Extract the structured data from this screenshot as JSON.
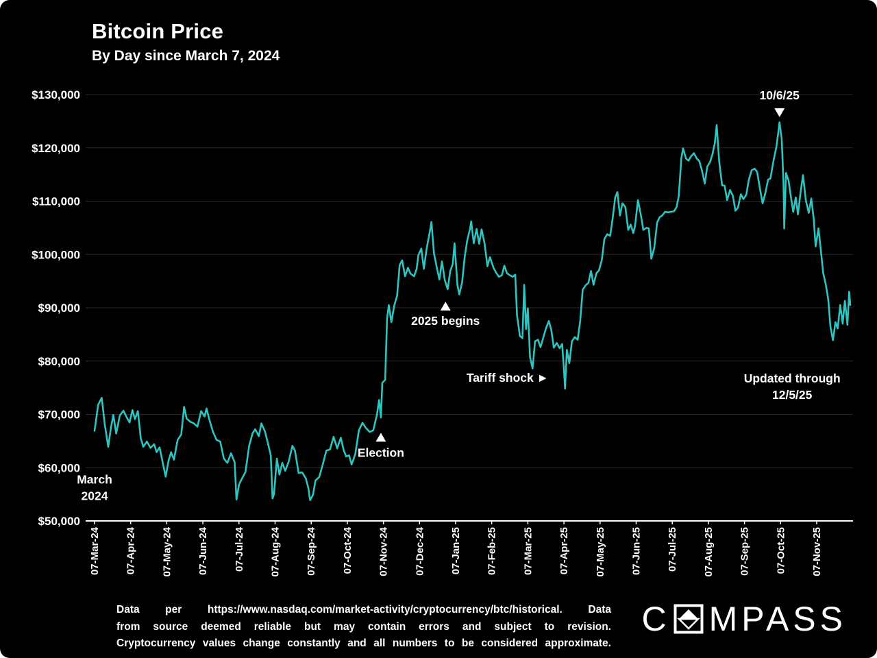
{
  "header": {
    "title": "Bitcoin Price",
    "subtitle": "By Day since March 7, 2024"
  },
  "chart_data": {
    "type": "line",
    "title": "Bitcoin Price",
    "subtitle": "By Day since March 7, 2024",
    "line_color": "#2fc4bf",
    "background": "#000000",
    "grid_color": "#2a2a2a",
    "y_axis": {
      "min": 50,
      "max": 130,
      "tick_step": 10,
      "unit": "USD thousands",
      "tick_labels": [
        "$50,000",
        "$60,000",
        "$70,000",
        "$80,000",
        "$90,000",
        "$100,000",
        "$110,000",
        "$120,000",
        "$130,000"
      ]
    },
    "x_axis": {
      "min": 0,
      "max": 20.93,
      "note": "x unit = months since 07-Mar-24; ticks on the 7th of each month",
      "tick_labels": [
        "07-Mar-24",
        "07-Apr-24",
        "07-May-24",
        "07-Jun-24",
        "07-Jul-24",
        "07-Aug-24",
        "07-Sep-24",
        "07-Oct-24",
        "07-Nov-24",
        "07-Dec-24",
        "07-Jan-25",
        "07-Feb-25",
        "07-Mar-25",
        "07-Apr-25",
        "07-May-25",
        "07-Jun-25",
        "07-Jul-25",
        "07-Aug-25",
        "07-Sep-25",
        "07-Oct-25",
        "07-Nov-25"
      ]
    },
    "series": [
      {
        "name": "Bitcoin price (USD thousands)",
        "points": [
          [
            0,
            66.9
          ],
          [
            0.1,
            71.8
          ],
          [
            0.2,
            73.1
          ],
          [
            0.28,
            68.2
          ],
          [
            0.38,
            63.9
          ],
          [
            0.45,
            67.3
          ],
          [
            0.52,
            69.9
          ],
          [
            0.6,
            66.4
          ],
          [
            0.7,
            69.8
          ],
          [
            0.8,
            70.7
          ],
          [
            0.9,
            69.3
          ],
          [
            0.97,
            68.5
          ],
          [
            1.05,
            70.8
          ],
          [
            1.12,
            69.1
          ],
          [
            1.2,
            70.6
          ],
          [
            1.28,
            65.5
          ],
          [
            1.35,
            63.9
          ],
          [
            1.45,
            64.9
          ],
          [
            1.55,
            63.7
          ],
          [
            1.65,
            64.4
          ],
          [
            1.72,
            62.9
          ],
          [
            1.8,
            63.8
          ],
          [
            1.9,
            60.6
          ],
          [
            1.97,
            58.3
          ],
          [
            2.05,
            61.3
          ],
          [
            2.12,
            62.9
          ],
          [
            2.2,
            61.5
          ],
          [
            2.3,
            65.2
          ],
          [
            2.4,
            66.2
          ],
          [
            2.48,
            71.4
          ],
          [
            2.55,
            69.2
          ],
          [
            2.65,
            68.6
          ],
          [
            2.75,
            68.3
          ],
          [
            2.85,
            67.7
          ],
          [
            2.95,
            70.6
          ],
          [
            3.05,
            69.6
          ],
          [
            3.1,
            71.1
          ],
          [
            3.18,
            69.0
          ],
          [
            3.28,
            66.7
          ],
          [
            3.38,
            65.2
          ],
          [
            3.48,
            64.9
          ],
          [
            3.58,
            61.7
          ],
          [
            3.68,
            60.9
          ],
          [
            3.78,
            62.7
          ],
          [
            3.88,
            61.0
          ],
          [
            3.93,
            54.0
          ],
          [
            4.0,
            56.8
          ],
          [
            4.08,
            57.9
          ],
          [
            4.18,
            59.2
          ],
          [
            4.28,
            64.1
          ],
          [
            4.38,
            66.5
          ],
          [
            4.45,
            67.2
          ],
          [
            4.55,
            65.9
          ],
          [
            4.62,
            68.3
          ],
          [
            4.72,
            66.8
          ],
          [
            4.8,
            64.6
          ],
          [
            4.88,
            62.3
          ],
          [
            4.93,
            54.2
          ],
          [
            4.97,
            55.0
          ],
          [
            5.05,
            61.7
          ],
          [
            5.12,
            58.7
          ],
          [
            5.2,
            60.9
          ],
          [
            5.28,
            59.4
          ],
          [
            5.38,
            61.2
          ],
          [
            5.48,
            64.1
          ],
          [
            5.55,
            63.2
          ],
          [
            5.65,
            59.0
          ],
          [
            5.75,
            59.1
          ],
          [
            5.85,
            58.0
          ],
          [
            5.92,
            56.2
          ],
          [
            5.97,
            53.9
          ],
          [
            6.05,
            54.9
          ],
          [
            6.12,
            57.6
          ],
          [
            6.22,
            58.2
          ],
          [
            6.32,
            60.6
          ],
          [
            6.42,
            63.2
          ],
          [
            6.52,
            63.4
          ],
          [
            6.62,
            65.8
          ],
          [
            6.72,
            63.6
          ],
          [
            6.82,
            65.6
          ],
          [
            6.9,
            63.3
          ],
          [
            6.97,
            62.1
          ],
          [
            7.05,
            62.3
          ],
          [
            7.12,
            60.6
          ],
          [
            7.22,
            62.5
          ],
          [
            7.32,
            67.0
          ],
          [
            7.42,
            68.4
          ],
          [
            7.52,
            67.4
          ],
          [
            7.62,
            66.7
          ],
          [
            7.72,
            67.0
          ],
          [
            7.82,
            69.9
          ],
          [
            7.88,
            72.7
          ],
          [
            7.93,
            69.4
          ],
          [
            7.97,
            75.9
          ],
          [
            8.05,
            76.5
          ],
          [
            8.1,
            88.0
          ],
          [
            8.15,
            90.5
          ],
          [
            8.22,
            87.3
          ],
          [
            8.3,
            90.4
          ],
          [
            8.38,
            92.3
          ],
          [
            8.45,
            98.0
          ],
          [
            8.52,
            98.9
          ],
          [
            8.6,
            95.9
          ],
          [
            8.68,
            97.5
          ],
          [
            8.75,
            96.4
          ],
          [
            8.85,
            95.9
          ],
          [
            8.92,
            97.3
          ],
          [
            8.97,
            99.9
          ],
          [
            9.05,
            101.1
          ],
          [
            9.12,
            97.3
          ],
          [
            9.2,
            101.2
          ],
          [
            9.28,
            104.1
          ],
          [
            9.33,
            106.1
          ],
          [
            9.4,
            100.2
          ],
          [
            9.48,
            97.5
          ],
          [
            9.55,
            95.3
          ],
          [
            9.62,
            98.7
          ],
          [
            9.7,
            95.2
          ],
          [
            9.78,
            93.5
          ],
          [
            9.85,
            96.9
          ],
          [
            9.92,
            98.2
          ],
          [
            9.97,
            102.1
          ],
          [
            10.05,
            94.3
          ],
          [
            10.1,
            92.5
          ],
          [
            10.18,
            94.8
          ],
          [
            10.25,
            99.5
          ],
          [
            10.32,
            102.6
          ],
          [
            10.4,
            104.9
          ],
          [
            10.43,
            106.2
          ],
          [
            10.5,
            102.1
          ],
          [
            10.58,
            104.8
          ],
          [
            10.65,
            102.0
          ],
          [
            10.72,
            104.7
          ],
          [
            10.8,
            102.1
          ],
          [
            10.88,
            97.8
          ],
          [
            10.95,
            99.5
          ],
          [
            11.05,
            97.5
          ],
          [
            11.12,
            96.6
          ],
          [
            11.2,
            95.8
          ],
          [
            11.28,
            96.1
          ],
          [
            11.35,
            97.9
          ],
          [
            11.42,
            96.5
          ],
          [
            11.5,
            96.1
          ],
          [
            11.58,
            95.8
          ],
          [
            11.65,
            96.2
          ],
          [
            11.7,
            88.6
          ],
          [
            11.78,
            84.7
          ],
          [
            11.85,
            84.3
          ],
          [
            11.9,
            94.3
          ],
          [
            11.95,
            86.0
          ],
          [
            12.0,
            89.9
          ],
          [
            12.06,
            80.7
          ],
          [
            12.13,
            78.6
          ],
          [
            12.2,
            83.7
          ],
          [
            12.28,
            84.0
          ],
          [
            12.35,
            82.6
          ],
          [
            12.42,
            84.2
          ],
          [
            12.5,
            86.1
          ],
          [
            12.58,
            87.5
          ],
          [
            12.65,
            85.8
          ],
          [
            12.72,
            82.5
          ],
          [
            12.8,
            83.4
          ],
          [
            12.88,
            82.4
          ],
          [
            12.95,
            83.2
          ],
          [
            13.0,
            78.4
          ],
          [
            13.03,
            74.8
          ],
          [
            13.08,
            82.1
          ],
          [
            13.15,
            79.6
          ],
          [
            13.22,
            83.7
          ],
          [
            13.3,
            84.5
          ],
          [
            13.38,
            84.0
          ],
          [
            13.45,
            87.5
          ],
          [
            13.52,
            93.4
          ],
          [
            13.6,
            94.2
          ],
          [
            13.68,
            94.7
          ],
          [
            13.75,
            96.9
          ],
          [
            13.82,
            94.3
          ],
          [
            13.9,
            96.5
          ],
          [
            13.97,
            97.0
          ],
          [
            14.05,
            99.0
          ],
          [
            14.12,
            102.9
          ],
          [
            14.2,
            103.8
          ],
          [
            14.28,
            103.5
          ],
          [
            14.35,
            106.8
          ],
          [
            14.42,
            110.7
          ],
          [
            14.48,
            111.7
          ],
          [
            14.55,
            107.3
          ],
          [
            14.62,
            109.6
          ],
          [
            14.7,
            108.9
          ],
          [
            14.78,
            104.6
          ],
          [
            14.85,
            105.6
          ],
          [
            14.92,
            104.0
          ],
          [
            14.97,
            105.4
          ],
          [
            15.05,
            110.2
          ],
          [
            15.12,
            107.8
          ],
          [
            15.2,
            104.6
          ],
          [
            15.28,
            105.0
          ],
          [
            15.35,
            104.9
          ],
          [
            15.42,
            99.2
          ],
          [
            15.5,
            101.2
          ],
          [
            15.58,
            106.0
          ],
          [
            15.65,
            107.0
          ],
          [
            15.72,
            107.3
          ],
          [
            15.8,
            108.0
          ],
          [
            15.88,
            107.9
          ],
          [
            15.95,
            108.0
          ],
          [
            16.05,
            108.1
          ],
          [
            16.12,
            108.9
          ],
          [
            16.18,
            111.0
          ],
          [
            16.25,
            118.0
          ],
          [
            16.3,
            119.9
          ],
          [
            16.38,
            118.0
          ],
          [
            16.45,
            117.6
          ],
          [
            16.52,
            118.4
          ],
          [
            16.6,
            119.0
          ],
          [
            16.68,
            118.0
          ],
          [
            16.75,
            117.5
          ],
          [
            16.82,
            115.8
          ],
          [
            16.9,
            113.3
          ],
          [
            16.97,
            116.5
          ],
          [
            17.05,
            117.4
          ],
          [
            17.12,
            119.0
          ],
          [
            17.18,
            121.0
          ],
          [
            17.23,
            124.3
          ],
          [
            17.3,
            117.4
          ],
          [
            17.38,
            113.0
          ],
          [
            17.45,
            112.9
          ],
          [
            17.52,
            110.2
          ],
          [
            17.6,
            112.1
          ],
          [
            17.68,
            111.0
          ],
          [
            17.75,
            108.2
          ],
          [
            17.82,
            108.8
          ],
          [
            17.9,
            111.3
          ],
          [
            17.97,
            110.4
          ],
          [
            18.05,
            111.2
          ],
          [
            18.12,
            114.0
          ],
          [
            18.2,
            115.8
          ],
          [
            18.28,
            116.1
          ],
          [
            18.35,
            115.5
          ],
          [
            18.42,
            112.7
          ],
          [
            18.5,
            109.6
          ],
          [
            18.58,
            111.6
          ],
          [
            18.65,
            114.0
          ],
          [
            18.72,
            114.3
          ],
          [
            18.8,
            117.5
          ],
          [
            18.88,
            120.1
          ],
          [
            18.93,
            122.5
          ],
          [
            18.97,
            124.8
          ],
          [
            19.03,
            121.7
          ],
          [
            19.08,
            113.5
          ],
          [
            19.1,
            104.9
          ],
          [
            19.15,
            115.3
          ],
          [
            19.22,
            113.9
          ],
          [
            19.28,
            111.0
          ],
          [
            19.35,
            108.0
          ],
          [
            19.42,
            110.7
          ],
          [
            19.48,
            107.5
          ],
          [
            19.55,
            111.5
          ],
          [
            19.62,
            114.9
          ],
          [
            19.7,
            110.1
          ],
          [
            19.78,
            107.8
          ],
          [
            19.85,
            110.5
          ],
          [
            19.92,
            106.5
          ],
          [
            19.97,
            101.5
          ],
          [
            20.05,
            104.9
          ],
          [
            20.1,
            101.7
          ],
          [
            20.18,
            96.5
          ],
          [
            20.25,
            94.4
          ],
          [
            20.32,
            91.5
          ],
          [
            20.38,
            86.5
          ],
          [
            20.45,
            83.9
          ],
          [
            20.52,
            87.3
          ],
          [
            20.58,
            86.1
          ],
          [
            20.65,
            90.5
          ],
          [
            20.72,
            87.0
          ],
          [
            20.78,
            91.3
          ],
          [
            20.85,
            86.8
          ],
          [
            20.9,
            93.0
          ],
          [
            20.93,
            90.5
          ]
        ]
      }
    ],
    "annotations": [
      {
        "id": "march-2024",
        "lines": [
          "March",
          "2024"
        ],
        "x": 0.0,
        "price": 57.0
      },
      {
        "id": "election",
        "lines": [
          "Election"
        ],
        "x": 7.93,
        "price": 62.0,
        "marker": "up",
        "marker_price": 65.7
      },
      {
        "id": "begins-2025",
        "lines": [
          "2025 begins"
        ],
        "x": 9.72,
        "price": 86.8,
        "marker": "up",
        "marker_price": 90.3
      },
      {
        "id": "tariff-shock",
        "lines": [
          "Tariff shock ►"
        ],
        "x": 11.44,
        "price": 76.1
      },
      {
        "id": "updated-through",
        "lines": [
          "Updated through",
          "12/5/25"
        ],
        "x": 19.32,
        "price": 76.0
      },
      {
        "id": "peak-date",
        "lines": [
          "10/6/25"
        ],
        "x": 18.97,
        "price": 129.1,
        "marker": "down",
        "marker_price": 126.6
      }
    ]
  },
  "footer": {
    "disclaimer_lines": [
      "Data per https://www.nasdaq.com/market-activity/cryptocurrency/btc/historical. Data",
      "from source deemed reliable but may contain errors and subject to revision.",
      "Cryptocurrency values change constantly and all numbers to be considered approximate."
    ],
    "logo": {
      "prefix": "C",
      "suffix": "MPASS"
    }
  }
}
